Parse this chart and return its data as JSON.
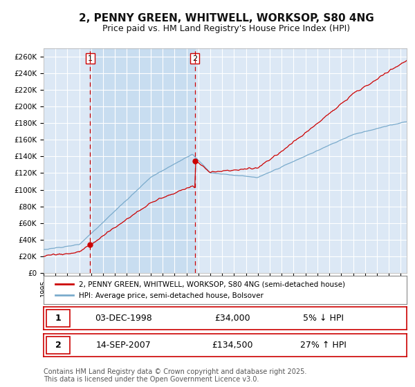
{
  "title": "2, PENNY GREEN, WHITWELL, WORKSOP, S80 4NG",
  "subtitle": "Price paid vs. HM Land Registry's House Price Index (HPI)",
  "title_fontsize": 11,
  "subtitle_fontsize": 9,
  "background_color": "#ffffff",
  "plot_bg_color": "#dce8f5",
  "grid_color": "#ffffff",
  "red_line_color": "#cc0000",
  "blue_line_color": "#7aabcc",
  "dashed_line_color": "#cc0000",
  "highlight_bg": "#c8ddf0",
  "ylim": [
    0,
    270000
  ],
  "yticks": [
    0,
    20000,
    40000,
    60000,
    80000,
    100000,
    120000,
    140000,
    160000,
    180000,
    200000,
    220000,
    240000,
    260000
  ],
  "sale1_year": 1998.92,
  "sale1_price": 34000,
  "sale1_label": "1",
  "sale2_year": 2007.71,
  "sale2_price": 134500,
  "sale2_label": "2",
  "legend_line1": "2, PENNY GREEN, WHITWELL, WORKSOP, S80 4NG (semi-detached house)",
  "legend_line2": "HPI: Average price, semi-detached house, Bolsover",
  "table_row1": [
    "1",
    "03-DEC-1998",
    "£34,000",
    "5% ↓ HPI"
  ],
  "table_row2": [
    "2",
    "14-SEP-2007",
    "£134,500",
    "27% ↑ HPI"
  ],
  "footnote": "Contains HM Land Registry data © Crown copyright and database right 2025.\nThis data is licensed under the Open Government Licence v3.0.",
  "footnote_fontsize": 7
}
